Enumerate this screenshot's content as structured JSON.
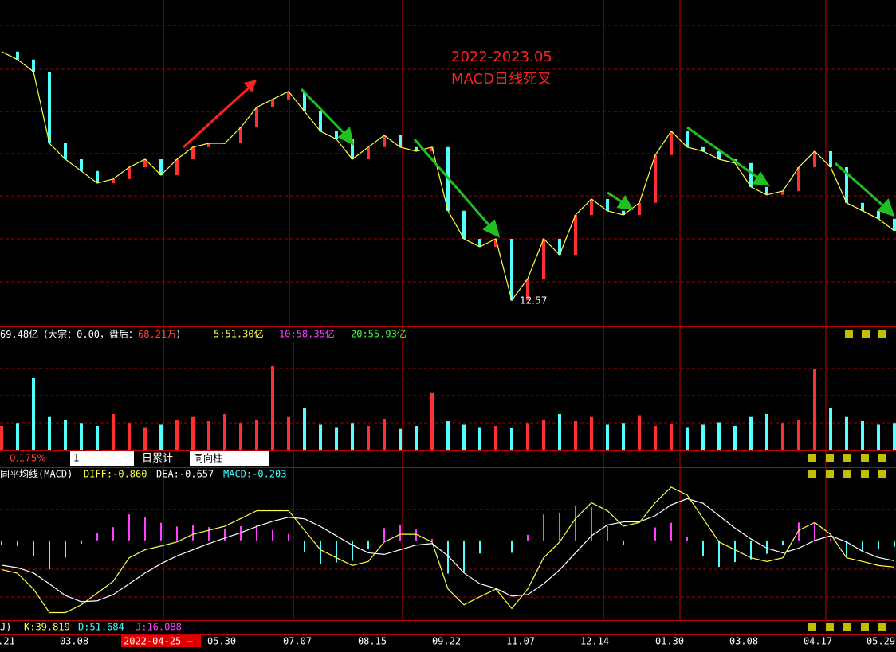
{
  "annotation": [
    "2022-2023.05",
    "MACD日线死叉"
  ],
  "volume_header": {
    "total": "69.48亿（大宗：0.00，盘后：",
    "after": "68.21万",
    "close": "）",
    "ma5": "5:51.30亿",
    "ma10": "10:58.35亿",
    "ma20": "20:55.93亿"
  },
  "toolbar": {
    "rate": "0.175%",
    "period": "1",
    "accum": "日累计",
    "mode": "同向柱"
  },
  "macd_header": {
    "name": "同平均线(MACD)",
    "diff": "DIFF:-0.860",
    "dea": "DEA:-0.657",
    "macd": "MACD:-0.203"
  },
  "kdj_header": {
    "name": "J)",
    "k": "K:39.819",
    "d": "D:51.684",
    "j": "J:16.088"
  },
  "date_axis": [
    ".21",
    "03.08",
    "2022-04-25 —",
    "05.30",
    "07.07",
    "08.15",
    "09.22",
    "11.07",
    "12.14",
    "01.30",
    "03.08",
    "04.17",
    "05.29"
  ],
  "chart_data": [
    {
      "type": "line",
      "ylim": [
        12,
        22
      ],
      "color": "#ffff40",
      "up_color": "#ff3030",
      "down_color": "#54ffff",
      "values": [
        20.38,
        20.13,
        19.75,
        17.5,
        17,
        16.63,
        16.25,
        16.38,
        16.75,
        17,
        16.5,
        17,
        17.38,
        17.5,
        17.5,
        18,
        18.63,
        18.88,
        19.13,
        18.5,
        17.88,
        17.63,
        17,
        17.38,
        17.75,
        17.38,
        17.25,
        17.38,
        15.38,
        14.5,
        14.25,
        14.5,
        12.57,
        13.25,
        14.5,
        14,
        15.25,
        15.75,
        15.38,
        15.25,
        15.63,
        17.13,
        17.88,
        17.38,
        17.25,
        17,
        16.88,
        16.13,
        15.88,
        16,
        16.75,
        17.25,
        16.75,
        15.63,
        15.38,
        15.13,
        14.75
      ]
    },
    {
      "type": "bar",
      "ylim": [
        0,
        180
      ],
      "up_color": "#ff3030",
      "down_color": "#54ffff",
      "values": [
        40,
        45,
        120,
        55,
        50,
        45,
        40,
        60,
        45,
        38,
        42,
        50,
        55,
        48,
        60,
        45,
        50,
        140,
        55,
        70,
        42,
        38,
        45,
        40,
        52,
        35,
        40,
        95,
        48,
        42,
        38,
        40,
        36,
        45,
        50,
        60,
        48,
        55,
        42,
        45,
        58,
        40,
        44,
        38,
        42,
        46,
        40,
        55,
        60,
        45,
        50,
        135,
        70,
        55,
        48,
        42,
        45
      ]
    },
    {
      "type": "macd",
      "ylim": [
        -2.6,
        1.9
      ],
      "diff_color": "#ffff40",
      "dea_color": "#ffffff",
      "up_color": "#ff40ff",
      "down_color": "#54ffff",
      "diff": [
        -0.94,
        -1.06,
        -1.57,
        -2.33,
        -2.33,
        -2.08,
        -1.7,
        -1.32,
        -0.56,
        -0.3,
        -0.18,
        -0.05,
        0.2,
        0.33,
        0.46,
        0.71,
        0.96,
        0.96,
        0.96,
        0.33,
        -0.3,
        -0.56,
        -0.81,
        -0.68,
        -0.05,
        0.2,
        0.2,
        -0.05,
        -1.57,
        -2.08,
        -1.82,
        -1.57,
        -2.2,
        -1.57,
        -0.56,
        -0.05,
        0.71,
        1.22,
        0.96,
        0.46,
        0.58,
        1.22,
        1.72,
        1.47,
        0.71,
        -0.05,
        -0.3,
        -0.56,
        -0.68,
        -0.56,
        0.33,
        0.58,
        0.2,
        -0.56,
        -0.68,
        -0.81,
        -0.86
      ],
      "dea": [
        -0.8,
        -0.88,
        -1.05,
        -1.4,
        -1.78,
        -1.98,
        -1.95,
        -1.75,
        -1.4,
        -1.05,
        -0.75,
        -0.5,
        -0.3,
        -0.1,
        0.08,
        0.25,
        0.45,
        0.62,
        0.75,
        0.7,
        0.45,
        0.15,
        -0.15,
        -0.4,
        -0.45,
        -0.3,
        -0.15,
        -0.1,
        -0.5,
        -1.05,
        -1.4,
        -1.55,
        -1.8,
        -1.75,
        -1.4,
        -0.95,
        -0.4,
        0.15,
        0.5,
        0.6,
        0.6,
        0.8,
        1.15,
        1.35,
        1.2,
        0.8,
        0.4,
        0.05,
        -0.25,
        -0.4,
        -0.25,
        0,
        0.15,
        -0.05,
        -0.35,
        -0.55,
        -0.657
      ],
      "hist": [
        -0.14,
        -0.18,
        -0.52,
        -0.93,
        -0.55,
        -0.1,
        0.25,
        0.43,
        0.84,
        0.75,
        0.57,
        0.45,
        0.5,
        0.43,
        0.38,
        0.46,
        0.51,
        0.34,
        0.21,
        -0.37,
        -0.75,
        -0.71,
        -0.66,
        -0.28,
        0.4,
        0.5,
        0.35,
        0.05,
        -1.07,
        -1.03,
        -0.42,
        -0.02,
        -0.4,
        0.18,
        0.84,
        0.9,
        1.11,
        1.07,
        0.46,
        -0.14,
        -0.02,
        0.42,
        0.57,
        0.12,
        -0.49,
        -0.85,
        -0.7,
        -0.61,
        -0.43,
        -0.16,
        0.58,
        0.58,
        0.05,
        -0.51,
        -0.33,
        -0.26,
        -0.203
      ]
    }
  ]
}
